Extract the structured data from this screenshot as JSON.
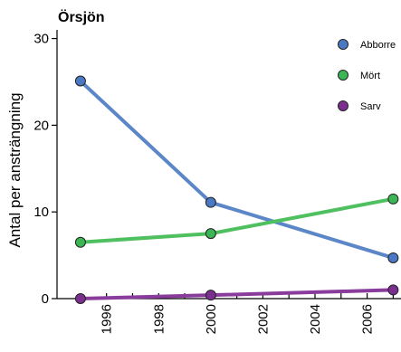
{
  "chart_data": {
    "type": "line",
    "title": "Örsjön",
    "xlabel": "",
    "ylabel": "Antal per ansträngning",
    "xlim": [
      1994.1,
      2007.3
    ],
    "ylim": [
      0,
      31
    ],
    "x_ticks_minor": [
      1995,
      1996,
      1997,
      1998,
      1999,
      2000,
      2001,
      2002,
      2003,
      2004,
      2005,
      2006,
      2007
    ],
    "x_tick_labels": [
      {
        "value": 1996,
        "label": "1996"
      },
      {
        "value": 1998,
        "label": "1998"
      },
      {
        "value": 2000,
        "label": "2000"
      },
      {
        "value": 2002,
        "label": "2002"
      },
      {
        "value": 2004,
        "label": "2004"
      },
      {
        "value": 2006,
        "label": "2006"
      }
    ],
    "y_ticks": [
      {
        "value": 0,
        "label": "0"
      },
      {
        "value": 10,
        "label": "10"
      },
      {
        "value": 20,
        "label": "20"
      },
      {
        "value": 30,
        "label": "30"
      }
    ],
    "legend_position": "top-right",
    "series": [
      {
        "name": "Abborre",
        "color": "#4a78c2",
        "line_color": "#5b86c8",
        "x": [
          1995,
          2000,
          2007
        ],
        "y": [
          25.1,
          11.1,
          4.7
        ]
      },
      {
        "name": "Mört",
        "color": "#3cb554",
        "line_color": "#4fc05f",
        "x": [
          1995,
          2000,
          2007
        ],
        "y": [
          6.5,
          7.5,
          11.5
        ]
      },
      {
        "name": "Sarv",
        "color": "#7a2f8f",
        "line_color": "#8a3c9c",
        "x": [
          1995,
          2000,
          2007
        ],
        "y": [
          0.0,
          0.4,
          1.0
        ]
      }
    ]
  }
}
